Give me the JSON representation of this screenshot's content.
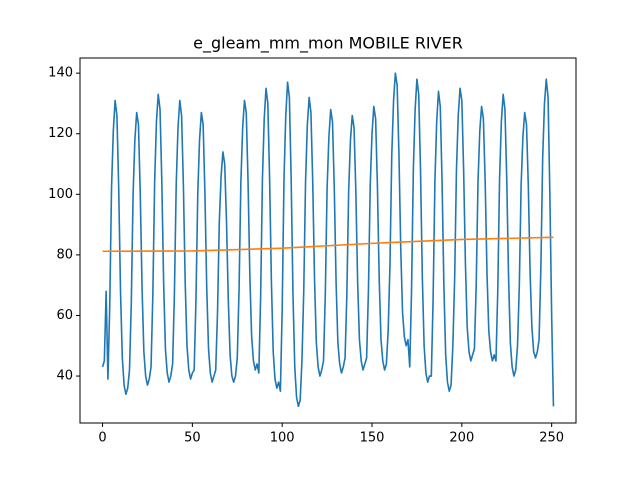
{
  "chart_data": {
    "type": "line",
    "title": "e_gleam_mm_mon MOBILE RIVER",
    "series": [
      {
        "color": "#1f77b4",
        "values": [
          43,
          45,
          68,
          39,
          63,
          102,
          121,
          131,
          126,
          102,
          68,
          46,
          37,
          34,
          36,
          42,
          64,
          100,
          118,
          127,
          123,
          100,
          69,
          48,
          40,
          37,
          39,
          43,
          67,
          104,
          124,
          133,
          128,
          104,
          71,
          49,
          41,
          38,
          40,
          44,
          67,
          103,
          122,
          131,
          126,
          103,
          71,
          50,
          42,
          39,
          41,
          42,
          65,
          100,
          118,
          127,
          123,
          100,
          69,
          49,
          41,
          38,
          40,
          42,
          61,
          91,
          106,
          114,
          110,
          91,
          65,
          47,
          40,
          38,
          40,
          46,
          69,
          104,
          122,
          131,
          127,
          104,
          73,
          53,
          45,
          42,
          44,
          41,
          66,
          105,
          125,
          135,
          130,
          105,
          71,
          48,
          39,
          36,
          38,
          35,
          62,
          105,
          126,
          137,
          132,
          105,
          67,
          43,
          33,
          30,
          32,
          45,
          68,
          104,
          123,
          132,
          127,
          104,
          72,
          51,
          43,
          40,
          42,
          45,
          67,
          102,
          119,
          128,
          124,
          102,
          71,
          51,
          44,
          41,
          43,
          46,
          67,
          101,
          118,
          126,
          122,
          101,
          71,
          52,
          45,
          42,
          44,
          46,
          68,
          103,
          120,
          129,
          125,
          103,
          72,
          52,
          45,
          42,
          44,
          55,
          77,
          113,
          131,
          140,
          136,
          113,
          82,
          61,
          53,
          50,
          52,
          43,
          68,
          108,
          128,
          138,
          133,
          108,
          73,
          50,
          41,
          38,
          40,
          40,
          65,
          104,
          124,
          134,
          129,
          104,
          70,
          47,
          38,
          35,
          37,
          50,
          72,
          108,
          126,
          135,
          131,
          108,
          77,
          56,
          48,
          45,
          47,
          49,
          70,
          104,
          121,
          129,
          125,
          104,
          74,
          55,
          48,
          45,
          47,
          45,
          68,
          105,
          124,
          133,
          128,
          105,
          73,
          51,
          43,
          40,
          42,
          50,
          70,
          103,
          119,
          127,
          123,
          103,
          74,
          56,
          48,
          46,
          48,
          52,
          76,
          112,
          130,
          138,
          132,
          100,
          60,
          30
        ]
      },
      {
        "color": "#ff7f0e",
        "x": [
          0,
          50,
          100,
          150,
          200,
          251
        ],
        "values": [
          81.2,
          81.3,
          82.2,
          83.8,
          85.1,
          85.8
        ]
      }
    ],
    "xlim": [
      -12.55,
      263.55
    ],
    "ylim": [
      24.5,
      145
    ],
    "xticks": [
      0,
      50,
      100,
      150,
      200,
      250
    ],
    "yticks": [
      40,
      60,
      80,
      100,
      120,
      140
    ],
    "grid": false
  }
}
